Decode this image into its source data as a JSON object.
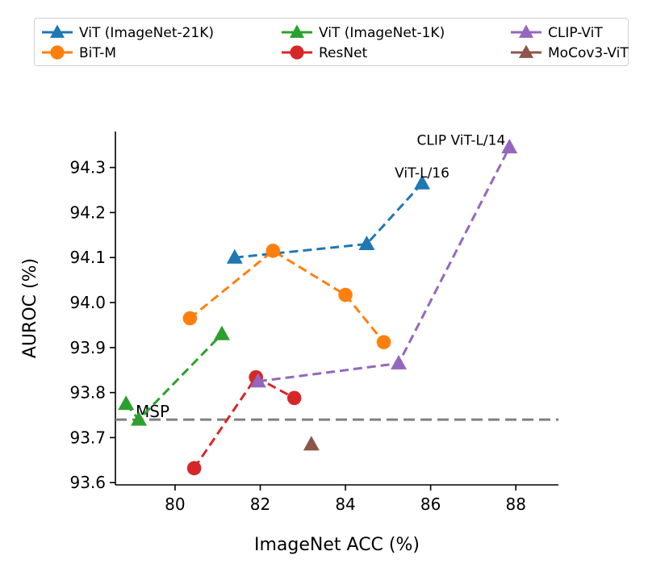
{
  "chart_data": {
    "type": "line",
    "xlabel": "ImageNet ACC (%)",
    "ylabel": "AUROC (%)",
    "xlim": [
      78.6,
      89.0
    ],
    "ylim": [
      93.595,
      94.38
    ],
    "xticks": [
      80,
      82,
      84,
      86,
      88
    ],
    "xtick_labels": [
      "80",
      "82",
      "84",
      "86",
      "88"
    ],
    "yticks": [
      93.6,
      93.7,
      93.8,
      93.9,
      94.0,
      94.1,
      94.2,
      94.3
    ],
    "ytick_labels": [
      "93.6",
      "93.7",
      "93.8",
      "93.9",
      "94.0",
      "94.1",
      "94.2",
      "94.3"
    ],
    "grid": false,
    "legend_position": "top",
    "baseline": {
      "label": "MSP",
      "y": 93.74,
      "color": "#808080"
    },
    "series": [
      {
        "name": "ViT (ImageNet-21K)",
        "color": "#1f77b4",
        "marker": "triangle",
        "x": [
          81.4,
          84.5,
          85.8
        ],
        "y": [
          94.1,
          94.13,
          94.265
        ]
      },
      {
        "name": "BiT-M",
        "color": "#ff7f0e",
        "marker": "circle",
        "x": [
          80.35,
          82.3,
          84.0,
          84.9
        ],
        "y": [
          93.965,
          94.115,
          94.017,
          93.912
        ]
      },
      {
        "name": "ViT (ImageNet-1K)",
        "color": "#2ca02c",
        "marker": "triangle",
        "x": [
          78.85,
          79.15,
          81.1
        ],
        "y": [
          93.775,
          93.74,
          93.93
        ]
      },
      {
        "name": "ResNet",
        "color": "#d62728",
        "marker": "circle",
        "x": [
          80.45,
          81.9,
          82.8
        ],
        "y": [
          93.632,
          93.834,
          93.788
        ]
      },
      {
        "name": "CLIP-ViT",
        "color": "#9467bd",
        "marker": "triangle",
        "x": [
          81.95,
          85.25,
          87.85
        ],
        "y": [
          93.825,
          93.865,
          94.345
        ]
      },
      {
        "name": "MoCov3-ViT",
        "color": "#8c564b",
        "marker": "triangle",
        "line": false,
        "x": [
          83.2
        ],
        "y": [
          93.685
        ]
      }
    ],
    "annotations": [
      {
        "text": "CLIP ViT-L/14",
        "x": 87.85,
        "y": 94.345
      },
      {
        "text": "ViT-L/16",
        "x": 85.8,
        "y": 94.265
      }
    ]
  }
}
